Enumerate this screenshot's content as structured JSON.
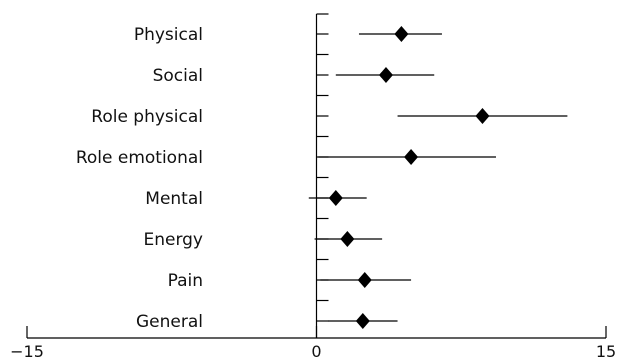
{
  "chart_data": {
    "type": "scatter",
    "categories": [
      "Physical",
      "Social",
      "Role physical",
      "Role emotional",
      "Mental",
      "Energy",
      "Pain",
      "General"
    ],
    "points": [
      {
        "category": "Physical",
        "estimate": 4.4,
        "ci_low": 2.2,
        "ci_high": 6.5
      },
      {
        "category": "Social",
        "estimate": 3.6,
        "ci_low": 1.0,
        "ci_high": 6.1
      },
      {
        "category": "Role physical",
        "estimate": 8.6,
        "ci_low": 4.2,
        "ci_high": 13.0
      },
      {
        "category": "Role emotional",
        "estimate": 4.9,
        "ci_low": 0.1,
        "ci_high": 9.3
      },
      {
        "category": "Mental",
        "estimate": 1.0,
        "ci_low": -0.4,
        "ci_high": 2.6
      },
      {
        "category": "Energy",
        "estimate": 1.6,
        "ci_low": -0.1,
        "ci_high": 3.4
      },
      {
        "category": "Pain",
        "estimate": 2.5,
        "ci_low": 0.2,
        "ci_high": 4.9
      },
      {
        "category": "General",
        "estimate": 2.4,
        "ci_low": 0.6,
        "ci_high": 4.2
      }
    ],
    "xlim": [
      -15,
      15
    ],
    "x_tick_labels": [
      "−15",
      "0",
      "15"
    ],
    "x_ticks": [
      -15,
      0,
      15
    ],
    "marker": "diamond",
    "marker_color": "#000000",
    "reference_line_x": 0,
    "grid": false,
    "title": "",
    "xlabel": "",
    "ylabel": ""
  }
}
